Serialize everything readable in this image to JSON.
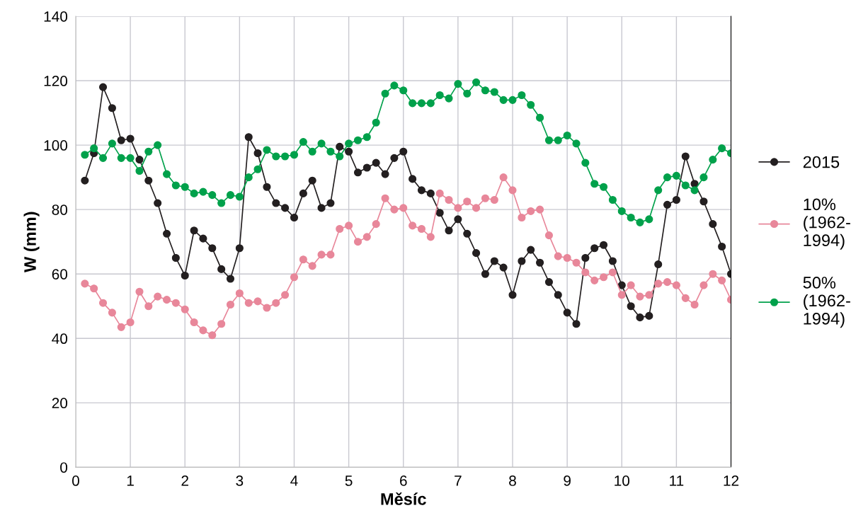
{
  "chart_data": {
    "type": "line",
    "xlabel": "Měsíc",
    "ylabel": "W (mm)",
    "x": [
      0.167,
      0.333,
      0.5,
      0.667,
      0.833,
      1.0,
      1.167,
      1.333,
      1.5,
      1.667,
      1.833,
      2.0,
      2.167,
      2.333,
      2.5,
      2.667,
      2.833,
      3.0,
      3.167,
      3.333,
      3.5,
      3.667,
      3.833,
      4.0,
      4.167,
      4.333,
      4.5,
      4.667,
      4.833,
      5.0,
      5.167,
      5.333,
      5.5,
      5.667,
      5.833,
      6.0,
      6.167,
      6.333,
      6.5,
      6.667,
      6.833,
      7.0,
      7.167,
      7.333,
      7.5,
      7.667,
      7.833,
      8.0,
      8.167,
      8.333,
      8.5,
      8.667,
      8.833,
      9.0,
      9.167,
      9.333,
      9.5,
      9.667,
      9.833,
      10.0,
      10.167,
      10.333,
      10.5,
      10.667,
      10.833,
      11.0,
      11.167,
      11.333,
      11.5,
      11.667,
      11.833,
      12.0
    ],
    "series": [
      {
        "name": "2015",
        "color": "#231f20",
        "values": [
          89,
          97.5,
          118,
          111.5,
          101.5,
          102,
          95.5,
          89,
          82,
          72.5,
          65,
          59.5,
          73.5,
          71,
          68,
          61.5,
          58.5,
          68,
          102.5,
          97.5,
          87,
          82,
          80.5,
          77.5,
          85,
          89,
          80.5,
          82,
          99.5,
          98,
          91.5,
          93,
          94.5,
          91,
          96,
          98,
          89.5,
          86,
          85,
          79,
          73.5,
          77,
          72.5,
          66.5,
          60,
          64,
          62,
          53.5,
          64,
          67.5,
          63.5,
          57.5,
          53.5,
          48,
          44.5,
          65,
          68,
          69,
          64,
          56.5,
          50,
          46.5,
          47,
          63,
          81.5,
          83,
          96.5,
          88,
          82.5,
          75.5,
          68.5,
          60
        ]
      },
      {
        "name": "10%\n(1962-\n1994)",
        "color": "#e8879a",
        "values": [
          57,
          55.5,
          51,
          48,
          43.5,
          45,
          54.5,
          50,
          53,
          52,
          51,
          49,
          45,
          42.5,
          41,
          44.5,
          50.5,
          54,
          51,
          51.5,
          49.5,
          51,
          53.5,
          59,
          64.5,
          62.5,
          66,
          66,
          74,
          75,
          70,
          71.5,
          75.5,
          83.5,
          80,
          80.5,
          75,
          74,
          71.5,
          85,
          83,
          80.5,
          82.5,
          80.5,
          83.5,
          83,
          90,
          86,
          77.5,
          79.5,
          80,
          72,
          65.5,
          65,
          63.5,
          60.5,
          58,
          59,
          60.5,
          53.5,
          56.5,
          53,
          53.5,
          57,
          57.5,
          56.5,
          52.5,
          50.5,
          56.5,
          60,
          58,
          52
        ]
      },
      {
        "name": "50%\n(1962-\n1994)",
        "color": "#00a14b",
        "values": [
          97,
          99,
          96,
          100.5,
          96,
          96,
          92,
          98,
          100,
          91,
          87.5,
          87,
          85,
          85.5,
          84.5,
          82,
          84.5,
          84,
          90,
          92.5,
          98.5,
          96.5,
          96.5,
          97,
          101,
          98,
          100.5,
          98,
          96.5,
          100.5,
          101.5,
          102.5,
          107,
          116,
          118.5,
          117,
          113,
          113,
          113,
          115.5,
          114.5,
          119,
          116,
          119.5,
          117,
          116.5,
          114,
          114,
          115.5,
          112.5,
          108.5,
          101.5,
          101.5,
          103,
          100.5,
          94.5,
          88,
          87,
          83,
          79.5,
          77.5,
          76,
          77,
          86,
          90,
          90.5,
          87.5,
          86,
          90,
          95.5,
          99,
          97.5
        ]
      }
    ],
    "xlim": [
      0,
      12
    ],
    "xticks": [
      0,
      1,
      2,
      3,
      4,
      5,
      6,
      7,
      8,
      9,
      10,
      11,
      12
    ],
    "ylim": [
      0,
      140
    ],
    "yticks": [
      0,
      20,
      40,
      60,
      80,
      100,
      120,
      140
    ],
    "grid": true,
    "legend": "right",
    "marker": "circle",
    "line_style": "solid"
  }
}
